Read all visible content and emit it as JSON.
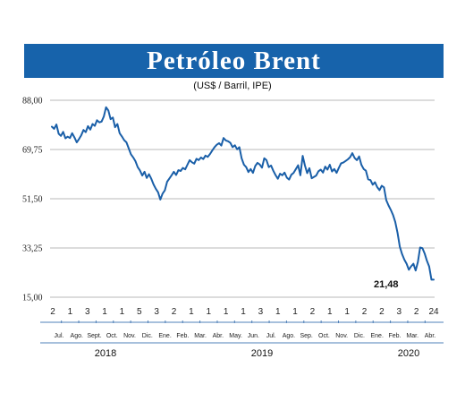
{
  "chart_data": {
    "type": "line",
    "title": "Petróleo Brent",
    "subtitle": "(US$ / Barril, IPE)",
    "ylim": [
      15.0,
      88.0
    ],
    "yticks": [
      "88,00",
      "69,75",
      "51,50",
      "33,25",
      "15,00"
    ],
    "yticks_values": [
      88.0,
      69.75,
      51.5,
      33.25,
      15.0
    ],
    "grid": true,
    "line_color": "#1a5fa8",
    "annotation": "21,48",
    "day_labels": [
      "2",
      "1",
      "3",
      "1",
      "1",
      "5",
      "3",
      "2",
      "1",
      "1",
      "1",
      "1",
      "3",
      "1",
      "1",
      "2",
      "1",
      "1",
      "2",
      "2",
      "3",
      "2",
      "24"
    ],
    "months": [
      "Jul.",
      "Ago.",
      "Sept.",
      "Oct.",
      "Nov.",
      "Dic.",
      "Ene.",
      "Feb.",
      "Mar.",
      "Abr.",
      "May.",
      "Jun.",
      "Jul.",
      "Ago.",
      "Sep.",
      "Oct.",
      "Nov.",
      "Dic.",
      "Ene.",
      "Feb.",
      "Mar.",
      "Abr."
    ],
    "years": [
      "2018",
      "2019",
      "2020"
    ],
    "series": [
      {
        "values": [
          78.2,
          77.4,
          79.0,
          75.6,
          74.8,
          76.3,
          73.9,
          74.5,
          74.0,
          75.8,
          74.2,
          72.4,
          73.6,
          75.0,
          77.0,
          76.2,
          78.4,
          77.1,
          79.2,
          78.5,
          80.6,
          79.8,
          80.1,
          82.0,
          85.4,
          84.2,
          81.0,
          81.6,
          78.0,
          79.2,
          75.8,
          74.6,
          73.2,
          72.4,
          70.2,
          68.0,
          66.8,
          65.4,
          63.2,
          62.0,
          60.1,
          61.5,
          59.2,
          60.6,
          58.9,
          56.8,
          55.2,
          53.9,
          51.2,
          53.4,
          54.6,
          57.8,
          59.0,
          60.2,
          61.5,
          60.3,
          62.1,
          61.8,
          62.9,
          62.4,
          64.1,
          65.8,
          65.0,
          64.5,
          66.3,
          65.8,
          66.8,
          66.2,
          67.5,
          67.0,
          68.1,
          69.4,
          70.6,
          71.5,
          72.1,
          71.2,
          74.0,
          73.1,
          72.8,
          72.2,
          70.6,
          71.3,
          69.8,
          70.6,
          66.5,
          64.1,
          63.2,
          61.4,
          62.5,
          61.1,
          63.6,
          64.8,
          64.2,
          63.0,
          66.5,
          65.8,
          63.2,
          63.8,
          61.9,
          60.3,
          58.9,
          60.8,
          60.2,
          61.2,
          59.3,
          58.6,
          60.4,
          61.1,
          62.5,
          63.9,
          60.2,
          67.4,
          63.8,
          61.0,
          62.8,
          59.1,
          59.6,
          60.1,
          61.7,
          62.3,
          61.2,
          63.4,
          62.3,
          64.1,
          61.6,
          62.5,
          61.1,
          62.9,
          64.6,
          64.9,
          65.5,
          66.1,
          66.9,
          68.4,
          66.6,
          65.8,
          67.2,
          64.1,
          62.5,
          61.9,
          58.7,
          58.4,
          56.7,
          57.6,
          55.8,
          54.7,
          56.3,
          55.7,
          51.0,
          49.0,
          47.4,
          45.5,
          42.9,
          38.8,
          33.7,
          31.0,
          28.9,
          27.4,
          25.2,
          26.4,
          27.4,
          24.9,
          28.0,
          33.4,
          33.2,
          31.2,
          28.5,
          26.4,
          21.5,
          21.5
        ]
      }
    ]
  }
}
